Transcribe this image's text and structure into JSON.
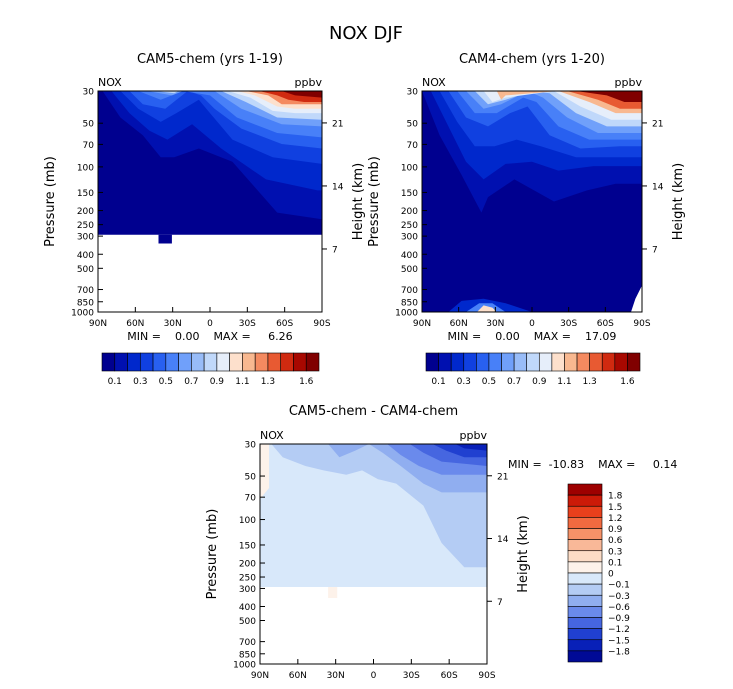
{
  "figure": {
    "title": "NOX DJF"
  },
  "chart_data": [
    {
      "type": "heatmap",
      "title": "CAM5-chem (yrs 1-19)",
      "variable_label": "NOX",
      "units_label": "ppbv",
      "xlabel": "",
      "ylabel": "Pressure (mb)",
      "ylabel_right": "Height (km)",
      "x_tick_labels": [
        "90N",
        "60N",
        "30N",
        "0",
        "30S",
        "60S",
        "90S"
      ],
      "x_ticks_lat": [
        90,
        60,
        30,
        0,
        -30,
        -60,
        -90
      ],
      "y_tick_labels": [
        "30",
        "50",
        "70",
        "100",
        "150",
        "200",
        "250",
        "300",
        "400",
        "500",
        "700",
        "850",
        "1000"
      ],
      "y_ticks_mb": [
        30,
        50,
        70,
        100,
        150,
        200,
        250,
        300,
        400,
        500,
        700,
        850,
        1000
      ],
      "y_right_tick_labels": [
        "21",
        "14",
        "7"
      ],
      "y_right_ticks_km": [
        21,
        14,
        7
      ],
      "ylim_mb": [
        1000,
        30
      ],
      "xlim_lat": [
        90,
        -90
      ],
      "stats_text": "MIN =    0.00    MAX =     6.26",
      "min": 0.0,
      "max": 6.26,
      "colorbar": {
        "orientation": "horizontal",
        "levels": [
          0.1,
          0.2,
          0.3,
          0.4,
          0.5,
          0.6,
          0.7,
          0.8,
          0.9,
          1.0,
          1.1,
          1.2,
          1.3,
          1.4,
          1.5,
          1.6
        ],
        "tick_labels": [
          "0.1",
          "0.3",
          "0.5",
          "0.7",
          "0.9",
          "1.1",
          "1.3",
          "1.6"
        ],
        "colors": [
          "#00008f",
          "#0010b0",
          "#0028cc",
          "#1040e0",
          "#2860f0",
          "#4880f8",
          "#70a0fa",
          "#98bcf8",
          "#c0d8fa",
          "#e6eefa",
          "#fde0cc",
          "#f8b890",
          "#f48a60",
          "#e85a32",
          "#d02a10",
          "#a80800",
          "#800000"
        ]
      }
    },
    {
      "type": "heatmap",
      "title": "CAM4-chem (yrs 1-20)",
      "variable_label": "NOX",
      "units_label": "ppbv",
      "xlabel": "",
      "ylabel": "Pressure (mb)",
      "ylabel_right": "Height (km)",
      "x_tick_labels": [
        "90N",
        "60N",
        "30N",
        "0",
        "30S",
        "60S",
        "90S"
      ],
      "x_ticks_lat": [
        90,
        60,
        30,
        0,
        -30,
        -60,
        -90
      ],
      "y_tick_labels": [
        "30",
        "50",
        "70",
        "100",
        "150",
        "200",
        "250",
        "300",
        "400",
        "500",
        "700",
        "850",
        "1000"
      ],
      "y_ticks_mb": [
        30,
        50,
        70,
        100,
        150,
        200,
        250,
        300,
        400,
        500,
        700,
        850,
        1000
      ],
      "y_right_tick_labels": [
        "21",
        "14",
        "7"
      ],
      "y_right_ticks_km": [
        21,
        14,
        7
      ],
      "ylim_mb": [
        1000,
        30
      ],
      "xlim_lat": [
        90,
        -90
      ],
      "stats_text": "MIN =    0.00    MAX =    17.09",
      "min": 0.0,
      "max": 17.09,
      "colorbar": {
        "orientation": "horizontal",
        "levels": [
          0.1,
          0.2,
          0.3,
          0.4,
          0.5,
          0.6,
          0.7,
          0.8,
          0.9,
          1.0,
          1.1,
          1.2,
          1.3,
          1.4,
          1.5,
          1.6
        ],
        "tick_labels": [
          "0.1",
          "0.3",
          "0.5",
          "0.7",
          "0.9",
          "1.1",
          "1.3",
          "1.6"
        ],
        "colors": [
          "#00008f",
          "#0010b0",
          "#0028cc",
          "#1040e0",
          "#2860f0",
          "#4880f8",
          "#70a0fa",
          "#98bcf8",
          "#c0d8fa",
          "#e6eefa",
          "#fde0cc",
          "#f8b890",
          "#f48a60",
          "#e85a32",
          "#d02a10",
          "#a80800",
          "#800000"
        ]
      }
    },
    {
      "type": "heatmap",
      "title": "CAM5-chem  -  CAM4-chem",
      "variable_label": "NOX",
      "units_label": "ppbv",
      "xlabel": "",
      "ylabel": "Pressure (mb)",
      "ylabel_right": "Height (km)",
      "x_tick_labels": [
        "90N",
        "60N",
        "30N",
        "0",
        "30S",
        "60S",
        "90S"
      ],
      "x_ticks_lat": [
        90,
        60,
        30,
        0,
        -30,
        -60,
        -90
      ],
      "y_tick_labels": [
        "30",
        "50",
        "70",
        "100",
        "150",
        "200",
        "250",
        "300",
        "400",
        "500",
        "700",
        "850",
        "1000"
      ],
      "y_ticks_mb": [
        30,
        50,
        70,
        100,
        150,
        200,
        250,
        300,
        400,
        500,
        700,
        850,
        1000
      ],
      "y_right_tick_labels": [
        "21",
        "14",
        "7"
      ],
      "y_right_ticks_km": [
        21,
        14,
        7
      ],
      "ylim_mb": [
        1000,
        30
      ],
      "xlim_lat": [
        90,
        -90
      ],
      "stats_text": "MIN =  -10.83    MAX =     0.14",
      "min": -10.83,
      "max": 0.14,
      "colorbar": {
        "orientation": "vertical",
        "levels": [
          1.8,
          1.5,
          1.2,
          0.9,
          0.6,
          0.3,
          0.1,
          0,
          -0.1,
          -0.3,
          -0.6,
          -0.9,
          -1.2,
          -1.5,
          -1.8
        ],
        "tick_labels": [
          "1.8",
          "1.5",
          "1.2",
          "0.9",
          "0.6",
          "0.3",
          "0.1",
          "0",
          "−0.1",
          "−0.3",
          "−0.6",
          "−0.9",
          "−1.2",
          "−1.5",
          "−1.8"
        ],
        "colors": [
          "#9e0000",
          "#cc1a08",
          "#e8401c",
          "#f26a40",
          "#f69268",
          "#f9b898",
          "#fcdcc6",
          "#fdf2ea",
          "#d8e8fa",
          "#b4ccf4",
          "#90aef0",
          "#6a8aec",
          "#4666e0",
          "#2040d0",
          "#0820b8",
          "#000a96"
        ]
      }
    }
  ]
}
